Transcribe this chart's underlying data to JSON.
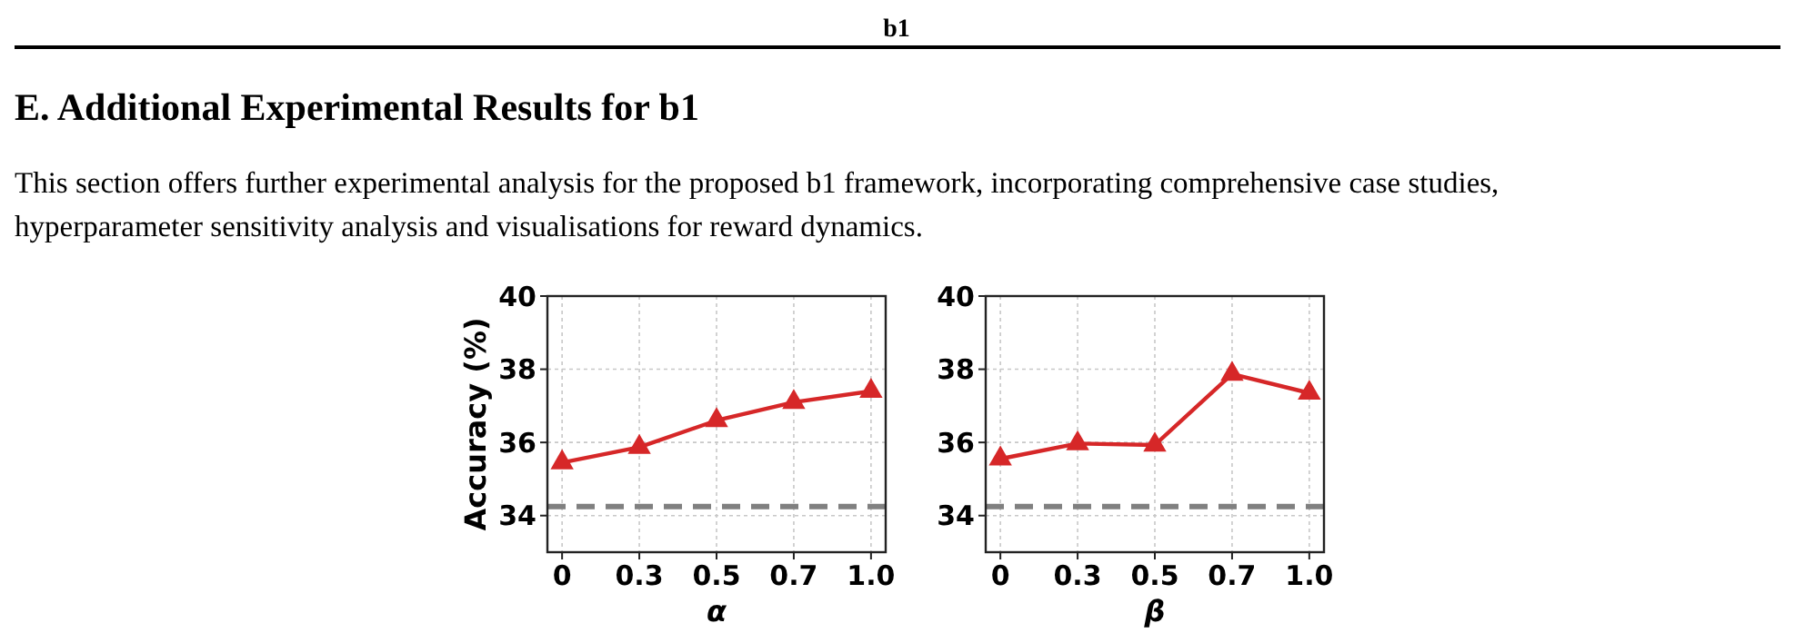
{
  "chart_data": [
    {
      "type": "line",
      "annotations": [
        "b1",
        "E. Additional Experimental Results for b1",
        "This section offers further experimental analysis for the proposed b1 framework, incorporating comprehensive case studies,",
        "hyperparameter sensitivity analysis and visualisations for reward dynamics."
      ],
      "categories": [
        "0",
        "0.3",
        "0.5",
        "0.7",
        "1.0"
      ],
      "series": [
        {
          "color": "#d62728",
          "values": [
            35.45,
            35.87,
            36.6,
            37.1,
            37.4
          ]
        }
      ],
      "xlabel": "α",
      "ylabel": "Accuracy (%)",
      "ylim": [
        33,
        40
      ],
      "yticks": [
        34,
        36,
        38,
        40
      ],
      "grid": true,
      "marker": "triangle",
      "line_style": "solid",
      "ref_lines": [
        {
          "axis": "y",
          "value": 34.25,
          "color": "#808080",
          "line_style": "dashed"
        }
      ]
    },
    {
      "type": "line",
      "categories": [
        "0",
        "0.3",
        "0.5",
        "0.7",
        "1.0"
      ],
      "series": [
        {
          "color": "#d62728",
          "values": [
            35.55,
            35.97,
            35.93,
            37.87,
            37.35
          ]
        }
      ],
      "xlabel": "β",
      "ylim": [
        33,
        40
      ],
      "yticks": [
        34,
        36,
        38,
        40
      ],
      "grid": true,
      "marker": "triangle",
      "line_style": "solid",
      "ref_lines": [
        {
          "axis": "y",
          "value": 34.25,
          "color": "#808080",
          "line_style": "dashed"
        }
      ]
    }
  ]
}
